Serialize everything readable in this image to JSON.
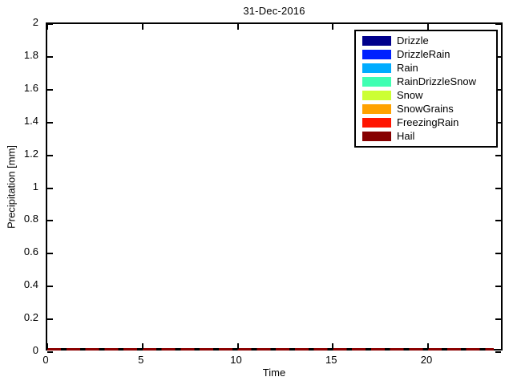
{
  "chart_data": {
    "type": "bar",
    "stacked": true,
    "title": "31-Dec-2016",
    "xlabel": "Time",
    "ylabel": "Precipitation [mm]",
    "xlim": [
      0,
      24
    ],
    "ylim": [
      0,
      2
    ],
    "xticks": [
      0,
      5,
      10,
      15,
      20
    ],
    "xtick_labels": [
      "0",
      "5",
      "10",
      "15",
      "20"
    ],
    "yticks": [
      0,
      0.2,
      0.4,
      0.6,
      0.8,
      1,
      1.2,
      1.4,
      1.6,
      1.8,
      2
    ],
    "ytick_labels": [
      "0",
      "0.2",
      "0.4",
      "0.6",
      "0.8",
      "1",
      "1.2",
      "1.4",
      "1.6",
      "1.8",
      "2"
    ],
    "grid": false,
    "legend_position": "top-right-inside",
    "x": [
      0,
      1,
      2,
      3,
      4,
      5,
      6,
      7,
      8,
      9,
      10,
      11,
      12,
      13,
      14,
      15,
      16,
      17,
      18,
      19,
      20,
      21,
      22,
      23
    ],
    "series": [
      {
        "name": "Drizzle",
        "color": "#00008C",
        "values": [
          0,
          0,
          0,
          0,
          0,
          0,
          0,
          0,
          0,
          0,
          0,
          0,
          0,
          0,
          0,
          0,
          0,
          0,
          0,
          0,
          0,
          0,
          0,
          0
        ]
      },
      {
        "name": "DrizzleRain",
        "color": "#0021FF",
        "values": [
          0,
          0,
          0,
          0,
          0,
          0,
          0,
          0,
          0,
          0,
          0,
          0,
          0,
          0,
          0,
          0,
          0,
          0,
          0,
          0,
          0,
          0,
          0,
          0
        ]
      },
      {
        "name": "Rain",
        "color": "#00ACFF",
        "values": [
          0,
          0,
          0,
          0,
          0,
          0,
          0,
          0,
          0,
          0,
          0,
          0,
          0,
          0,
          0,
          0,
          0,
          0,
          0,
          0,
          0,
          0,
          0,
          0
        ]
      },
      {
        "name": "RainDrizzleSnow",
        "color": "#3FFFB2",
        "values": [
          0,
          0,
          0,
          0,
          0,
          0,
          0,
          0,
          0,
          0,
          0,
          0,
          0,
          0,
          0,
          0,
          0,
          0,
          0,
          0,
          0,
          0,
          0,
          0
        ]
      },
      {
        "name": "Snow",
        "color": "#CCFF33",
        "values": [
          0,
          0,
          0,
          0,
          0,
          0,
          0,
          0,
          0,
          0,
          0,
          0,
          0,
          0,
          0,
          0,
          0,
          0,
          0,
          0,
          0,
          0,
          0,
          0
        ]
      },
      {
        "name": "SnowGrains",
        "color": "#FFA200",
        "values": [
          0,
          0,
          0,
          0,
          0,
          0,
          0,
          0,
          0,
          0,
          0,
          0,
          0,
          0,
          0,
          0,
          0,
          0,
          0,
          0,
          0,
          0,
          0,
          0
        ]
      },
      {
        "name": "FreezingRain",
        "color": "#FF1500",
        "values": [
          0,
          0,
          0,
          0,
          0,
          0,
          0,
          0,
          0,
          0,
          0,
          0,
          0,
          0,
          0,
          0,
          0,
          0,
          0,
          0,
          0,
          0,
          0,
          0
        ]
      },
      {
        "name": "Hail",
        "color": "#860000",
        "values": [
          0,
          0,
          0,
          0,
          0,
          0,
          0,
          0,
          0,
          0,
          0,
          0,
          0,
          0,
          0,
          0,
          0,
          0,
          0,
          0,
          0,
          0,
          0,
          0
        ]
      }
    ],
    "zero_line_color": "#8B0000",
    "axis_color": "#000000",
    "background_color": "#FFFFFF"
  }
}
